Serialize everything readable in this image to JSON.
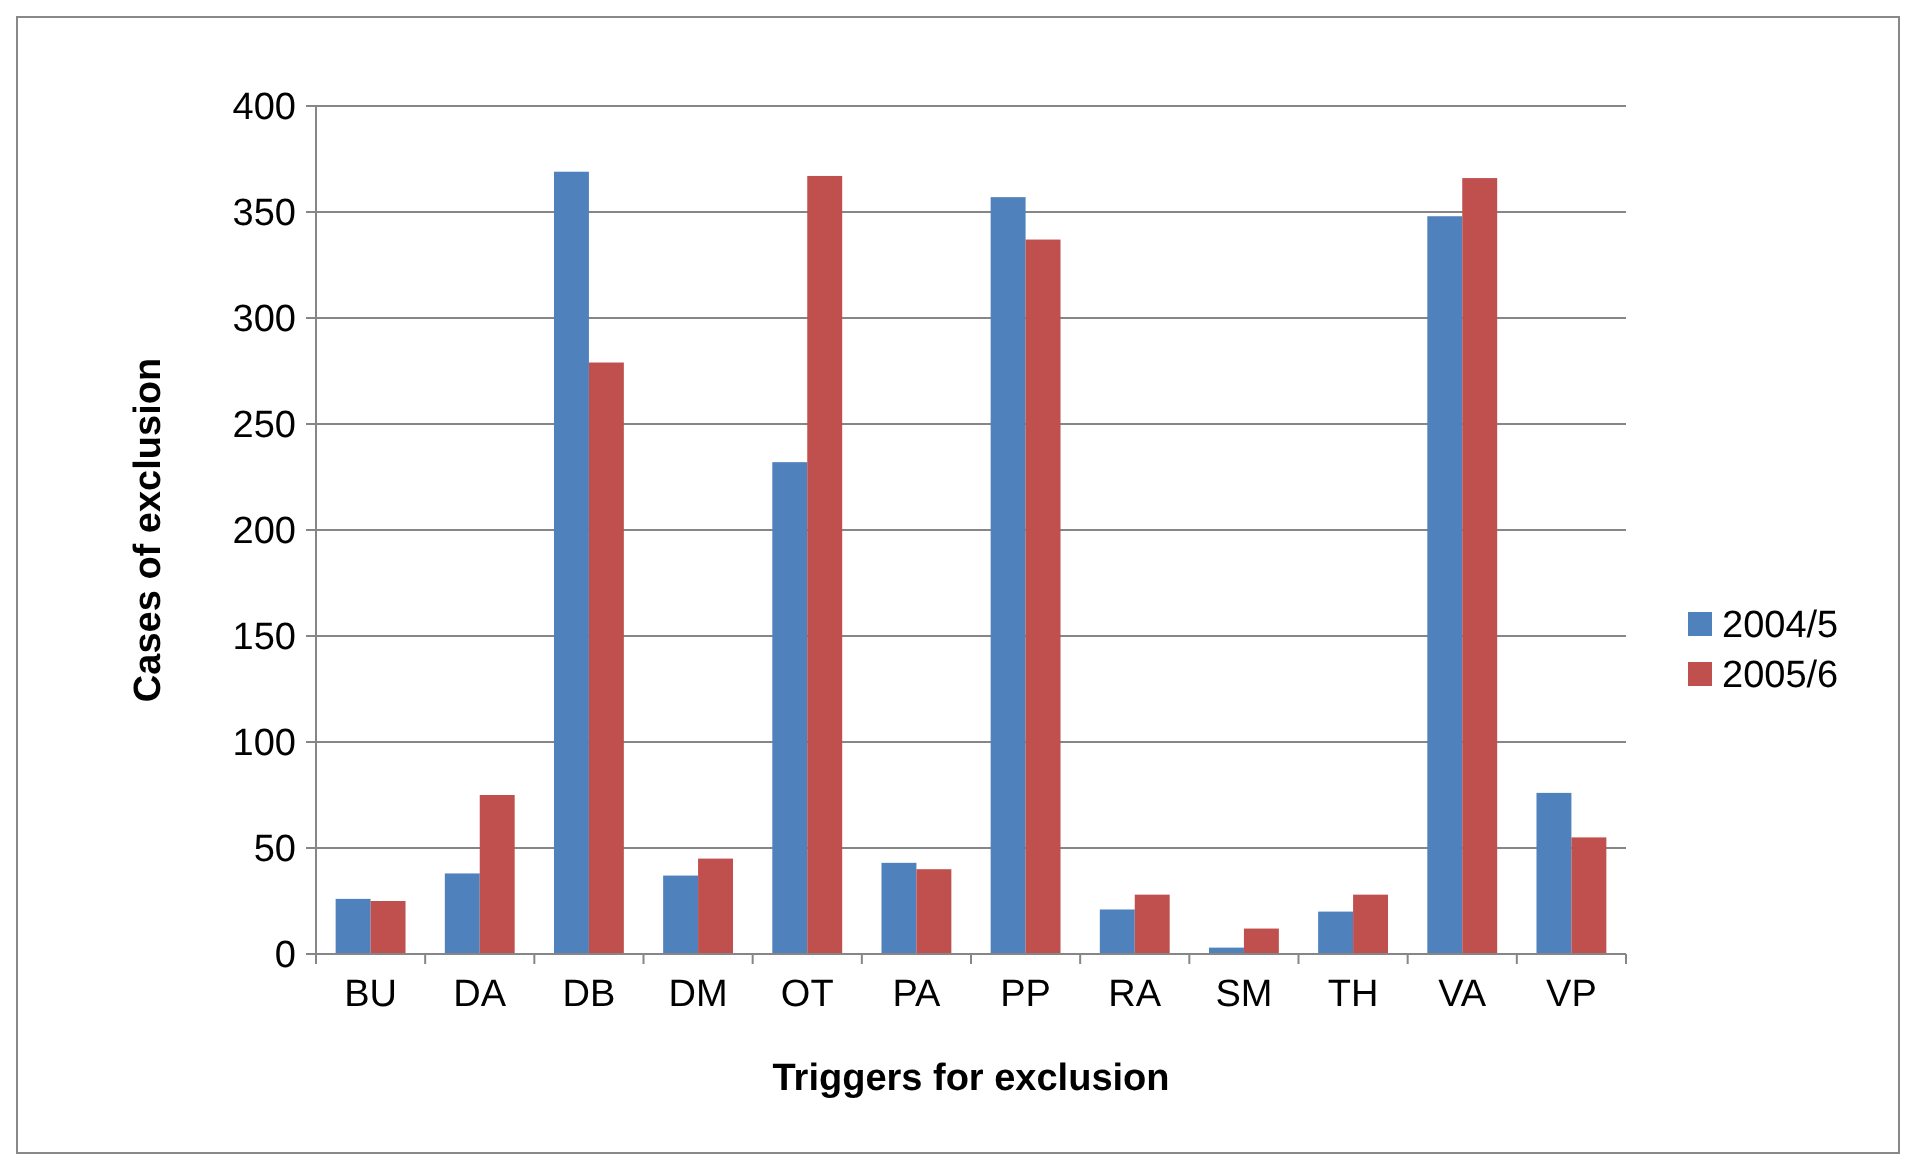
{
  "chart_data": {
    "type": "bar",
    "xlabel": "Triggers for exclusion",
    "ylabel": "Cases of exclusion",
    "categories": [
      "BU",
      "DA",
      "DB",
      "DM",
      "OT",
      "PA",
      "PP",
      "RA",
      "SM",
      "TH",
      "VA",
      "VP"
    ],
    "series": [
      {
        "name": "2004/5",
        "color": "#4f81bd",
        "values": [
          26,
          38,
          369,
          37,
          232,
          43,
          357,
          21,
          3,
          20,
          348,
          76
        ]
      },
      {
        "name": "2005/6",
        "color": "#c0504d",
        "values": [
          25,
          75,
          279,
          45,
          367,
          40,
          337,
          28,
          12,
          28,
          366,
          55
        ]
      }
    ],
    "ylim": [
      0,
      400
    ],
    "yticks": [
      0,
      50,
      100,
      150,
      200,
      250,
      300,
      350,
      400
    ],
    "grid": "y",
    "legend": "right"
  }
}
